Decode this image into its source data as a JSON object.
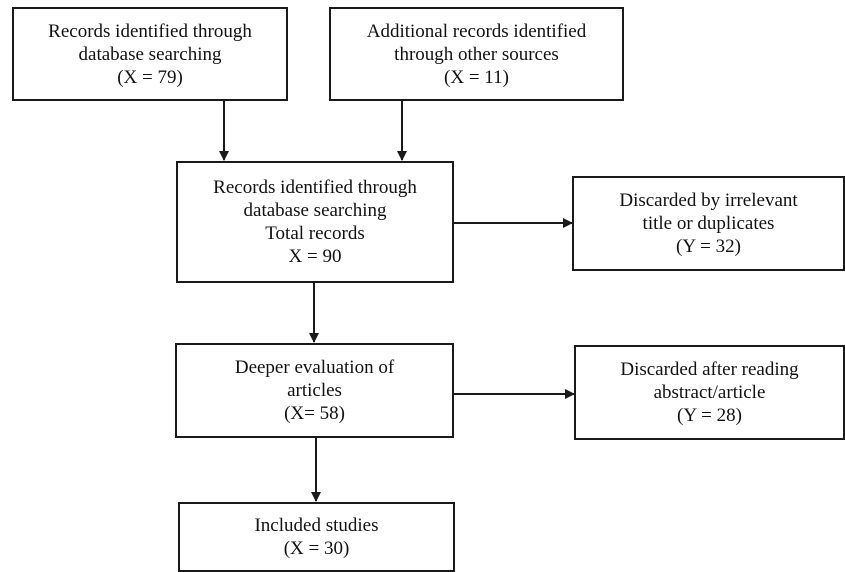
{
  "flowchart": {
    "box_database": {
      "lines": [
        "Records identified through",
        "database searching",
        "(X = 79)"
      ]
    },
    "box_other_sources": {
      "lines": [
        "Additional records identified",
        "through other sources",
        "(X = 11)"
      ]
    },
    "box_total": {
      "lines": [
        "Records identified through",
        "database searching",
        "Total records",
        "X = 90"
      ]
    },
    "box_discarded_title": {
      "lines": [
        "Discarded by irrelevant",
        "title or duplicates",
        "(Y = 32)"
      ]
    },
    "box_deeper": {
      "lines": [
        "Deeper evaluation of",
        "articles",
        "(X= 58)"
      ]
    },
    "box_discarded_abstract": {
      "lines": [
        "Discarded after reading",
        "abstract/article",
        "(Y = 28)"
      ]
    },
    "box_included": {
      "lines": [
        "Included studies",
        "(X = 30)"
      ]
    }
  }
}
